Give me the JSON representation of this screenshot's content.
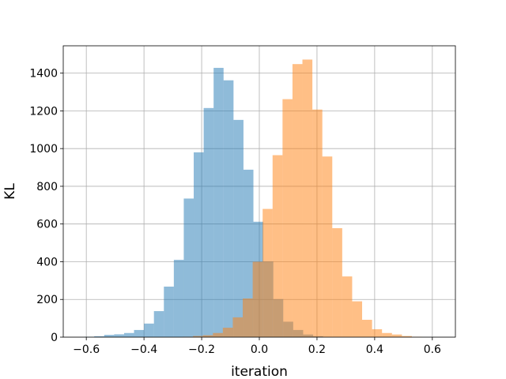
{
  "chart_data": {
    "type": "bar",
    "title": "",
    "xlabel": "iteration",
    "ylabel": "KL",
    "xlim": [
      -0.68,
      0.68
    ],
    "ylim": [
      0,
      1545
    ],
    "grid": true,
    "xticks": [
      -0.6,
      -0.4,
      -0.2,
      0.0,
      0.2,
      0.4,
      0.6
    ],
    "xtick_labels": [
      "−0.6",
      "−0.4",
      "−0.2",
      "0.0",
      "0.2",
      "0.4",
      "0.6"
    ],
    "yticks": [
      0,
      200,
      400,
      600,
      800,
      1000,
      1200,
      1400
    ],
    "ytick_labels": [
      "0",
      "200",
      "400",
      "600",
      "800",
      "1000",
      "1200",
      "1400"
    ],
    "bin_width": 0.0345,
    "series": [
      {
        "color": "#1f77b4",
        "alpha": 0.5,
        "bins": [
          {
            "x0": -0.607,
            "count": 2
          },
          {
            "x0": -0.5725,
            "count": 5
          },
          {
            "x0": -0.538,
            "count": 12
          },
          {
            "x0": -0.5035,
            "count": 15
          },
          {
            "x0": -0.469,
            "count": 22
          },
          {
            "x0": -0.4345,
            "count": 38
          },
          {
            "x0": -0.4,
            "count": 72
          },
          {
            "x0": -0.3655,
            "count": 138
          },
          {
            "x0": -0.331,
            "count": 268
          },
          {
            "x0": -0.2965,
            "count": 410
          },
          {
            "x0": -0.262,
            "count": 735
          },
          {
            "x0": -0.2275,
            "count": 980
          },
          {
            "x0": -0.193,
            "count": 1215
          },
          {
            "x0": -0.1585,
            "count": 1428
          },
          {
            "x0": -0.124,
            "count": 1362
          },
          {
            "x0": -0.0895,
            "count": 1152
          },
          {
            "x0": -0.055,
            "count": 888
          },
          {
            "x0": -0.0205,
            "count": 612
          },
          {
            "x0": 0.014,
            "count": 402
          },
          {
            "x0": 0.0485,
            "count": 202
          },
          {
            "x0": 0.083,
            "count": 82
          },
          {
            "x0": 0.1175,
            "count": 38
          },
          {
            "x0": 0.152,
            "count": 14
          },
          {
            "x0": 0.1865,
            "count": 5
          }
        ]
      },
      {
        "color": "#ff7f0e",
        "alpha": 0.5,
        "bins": [
          {
            "x0": -0.2645,
            "count": 2
          },
          {
            "x0": -0.23,
            "count": 6
          },
          {
            "x0": -0.1955,
            "count": 10
          },
          {
            "x0": -0.161,
            "count": 22
          },
          {
            "x0": -0.1265,
            "count": 50
          },
          {
            "x0": -0.092,
            "count": 105
          },
          {
            "x0": -0.0575,
            "count": 205
          },
          {
            "x0": -0.023,
            "count": 400
          },
          {
            "x0": 0.0115,
            "count": 680
          },
          {
            "x0": 0.046,
            "count": 965
          },
          {
            "x0": 0.0805,
            "count": 1262
          },
          {
            "x0": 0.115,
            "count": 1448
          },
          {
            "x0": 0.1495,
            "count": 1472
          },
          {
            "x0": 0.184,
            "count": 1207
          },
          {
            "x0": 0.2185,
            "count": 958
          },
          {
            "x0": 0.253,
            "count": 578
          },
          {
            "x0": 0.2875,
            "count": 322
          },
          {
            "x0": 0.322,
            "count": 190
          },
          {
            "x0": 0.3565,
            "count": 92
          },
          {
            "x0": 0.391,
            "count": 42
          },
          {
            "x0": 0.4255,
            "count": 22
          },
          {
            "x0": 0.46,
            "count": 14
          },
          {
            "x0": 0.4945,
            "count": 6
          },
          {
            "x0": 0.529,
            "count": 2
          }
        ]
      }
    ]
  }
}
